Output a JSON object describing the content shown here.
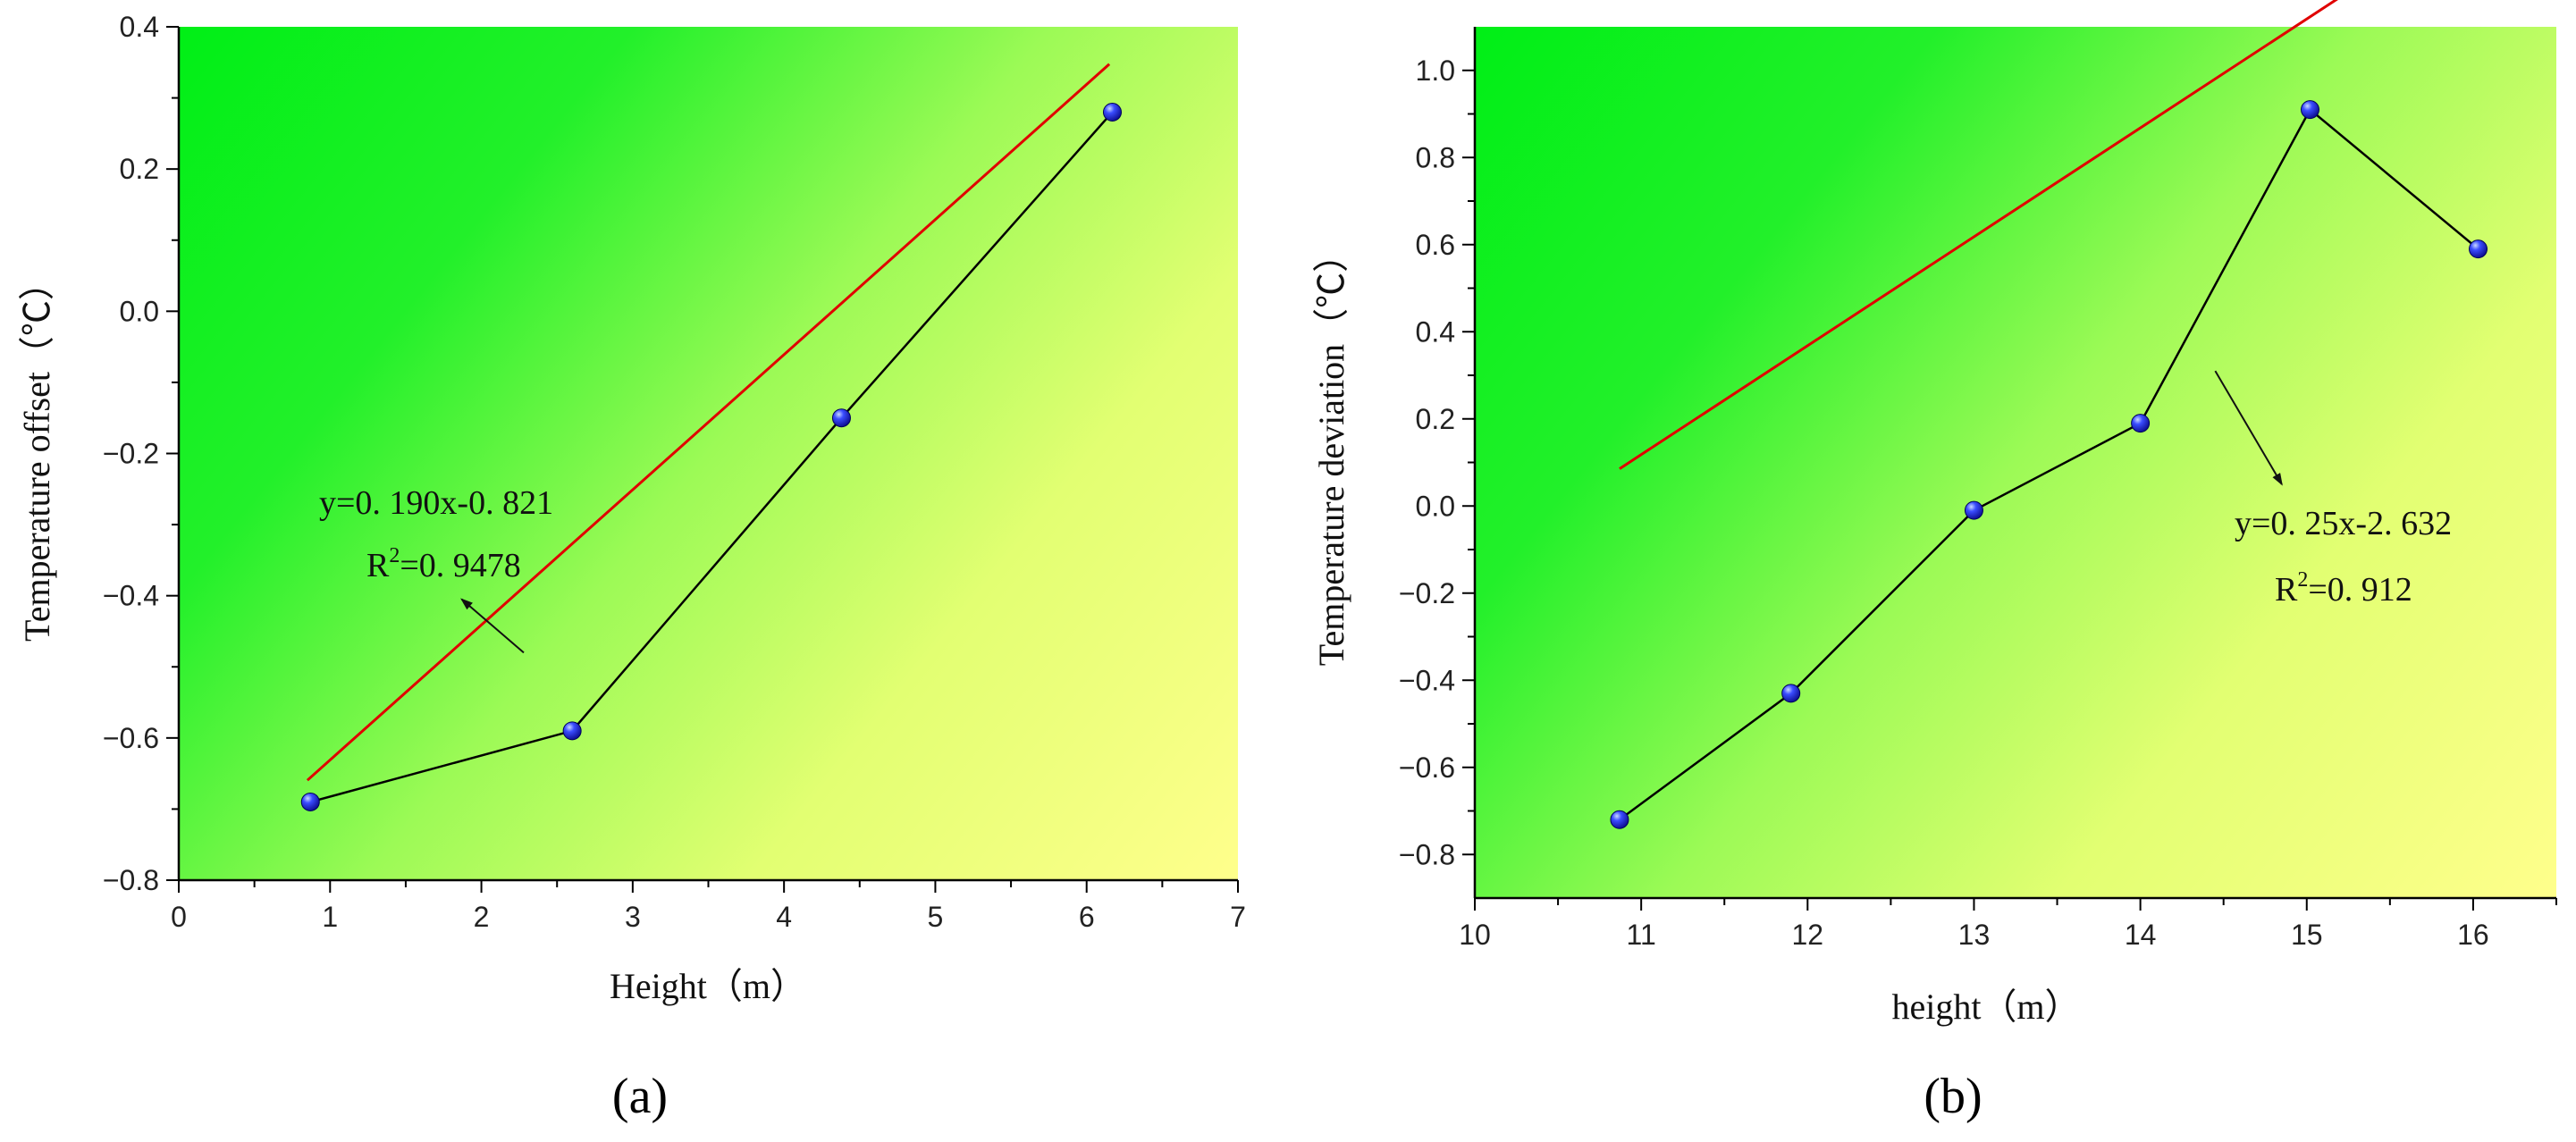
{
  "panels": {
    "a": {
      "label": "(a)"
    },
    "b": {
      "label": "(b)"
    }
  },
  "chart_data": [
    {
      "id": "a",
      "type": "line",
      "xlabel": "Height（m）",
      "ylabel": "Temperature offset（℃）",
      "xlim": [
        0,
        7
      ],
      "ylim": [
        -0.8,
        0.4
      ],
      "xticks": [
        0,
        1,
        2,
        3,
        4,
        5,
        6,
        7
      ],
      "xtick_labels": [
        "0",
        "1",
        "2",
        "3",
        "4",
        "5",
        "6",
        "7"
      ],
      "yticks": [
        -0.8,
        -0.6,
        -0.4,
        -0.2,
        0.0,
        0.2,
        0.4
      ],
      "ytick_labels": [
        "−0.8",
        "−0.6",
        "−0.4",
        "−0.2",
        "0.0",
        "0.2",
        "0.4"
      ],
      "series": [
        {
          "x": [
            0.87,
            2.6,
            4.38,
            6.17
          ],
          "y": [
            -0.69,
            -0.59,
            -0.15,
            0.28
          ],
          "color": "#000000"
        }
      ],
      "fit": {
        "slope": 0.19,
        "intercept": -0.821,
        "x_range": [
          0.85,
          6.15
        ],
        "color": "#e00000"
      },
      "equation_line1": "y=0. 190x-0. 821",
      "r2_prefix": "R",
      "r2_sup": "2",
      "r2_value": "=0. 9478",
      "annotation_arrow": {
        "from": [
          2.28,
          -0.48
        ],
        "to": [
          1.87,
          -0.405
        ]
      },
      "background": "green-to-yellow diagonal gradient",
      "grid": false
    },
    {
      "id": "b",
      "type": "line",
      "xlabel": "height（m）",
      "ylabel": "Temperature deviation（℃）",
      "xlim": [
        10,
        16.5
      ],
      "ylim": [
        -0.9,
        1.1
      ],
      "xticks": [
        10,
        11,
        12,
        13,
        14,
        15,
        16
      ],
      "xtick_labels": [
        "10",
        "11",
        "12",
        "13",
        "14",
        "15",
        "16"
      ],
      "yticks": [
        -0.8,
        -0.6,
        -0.4,
        -0.2,
        0.0,
        0.2,
        0.4,
        0.6,
        0.8,
        1.0
      ],
      "ytick_labels": [
        "−0.8",
        "−0.6",
        "−0.4",
        "−0.2",
        "0.0",
        "0.2",
        "0.4",
        "0.6",
        "0.8",
        "1.0"
      ],
      "series": [
        {
          "x": [
            10.87,
            11.9,
            13.0,
            14.0,
            15.02,
            16.03
          ],
          "y": [
            -0.72,
            -0.43,
            -0.01,
            0.19,
            0.91,
            0.59
          ],
          "color": "#000000"
        }
      ],
      "fit": {
        "slope": 0.25,
        "intercept": -2.632,
        "x_range": [
          10.87,
          16.0
        ],
        "color": "#e00000"
      },
      "equation_line1": "y=0. 25x-2. 632",
      "r2_prefix": "R",
      "r2_sup": "2",
      "r2_value": "=0. 912",
      "annotation_arrow": {
        "from": [
          14.45,
          0.31
        ],
        "to": [
          14.85,
          0.05
        ]
      },
      "background": "green-to-yellow diagonal gradient",
      "grid": false
    }
  ]
}
